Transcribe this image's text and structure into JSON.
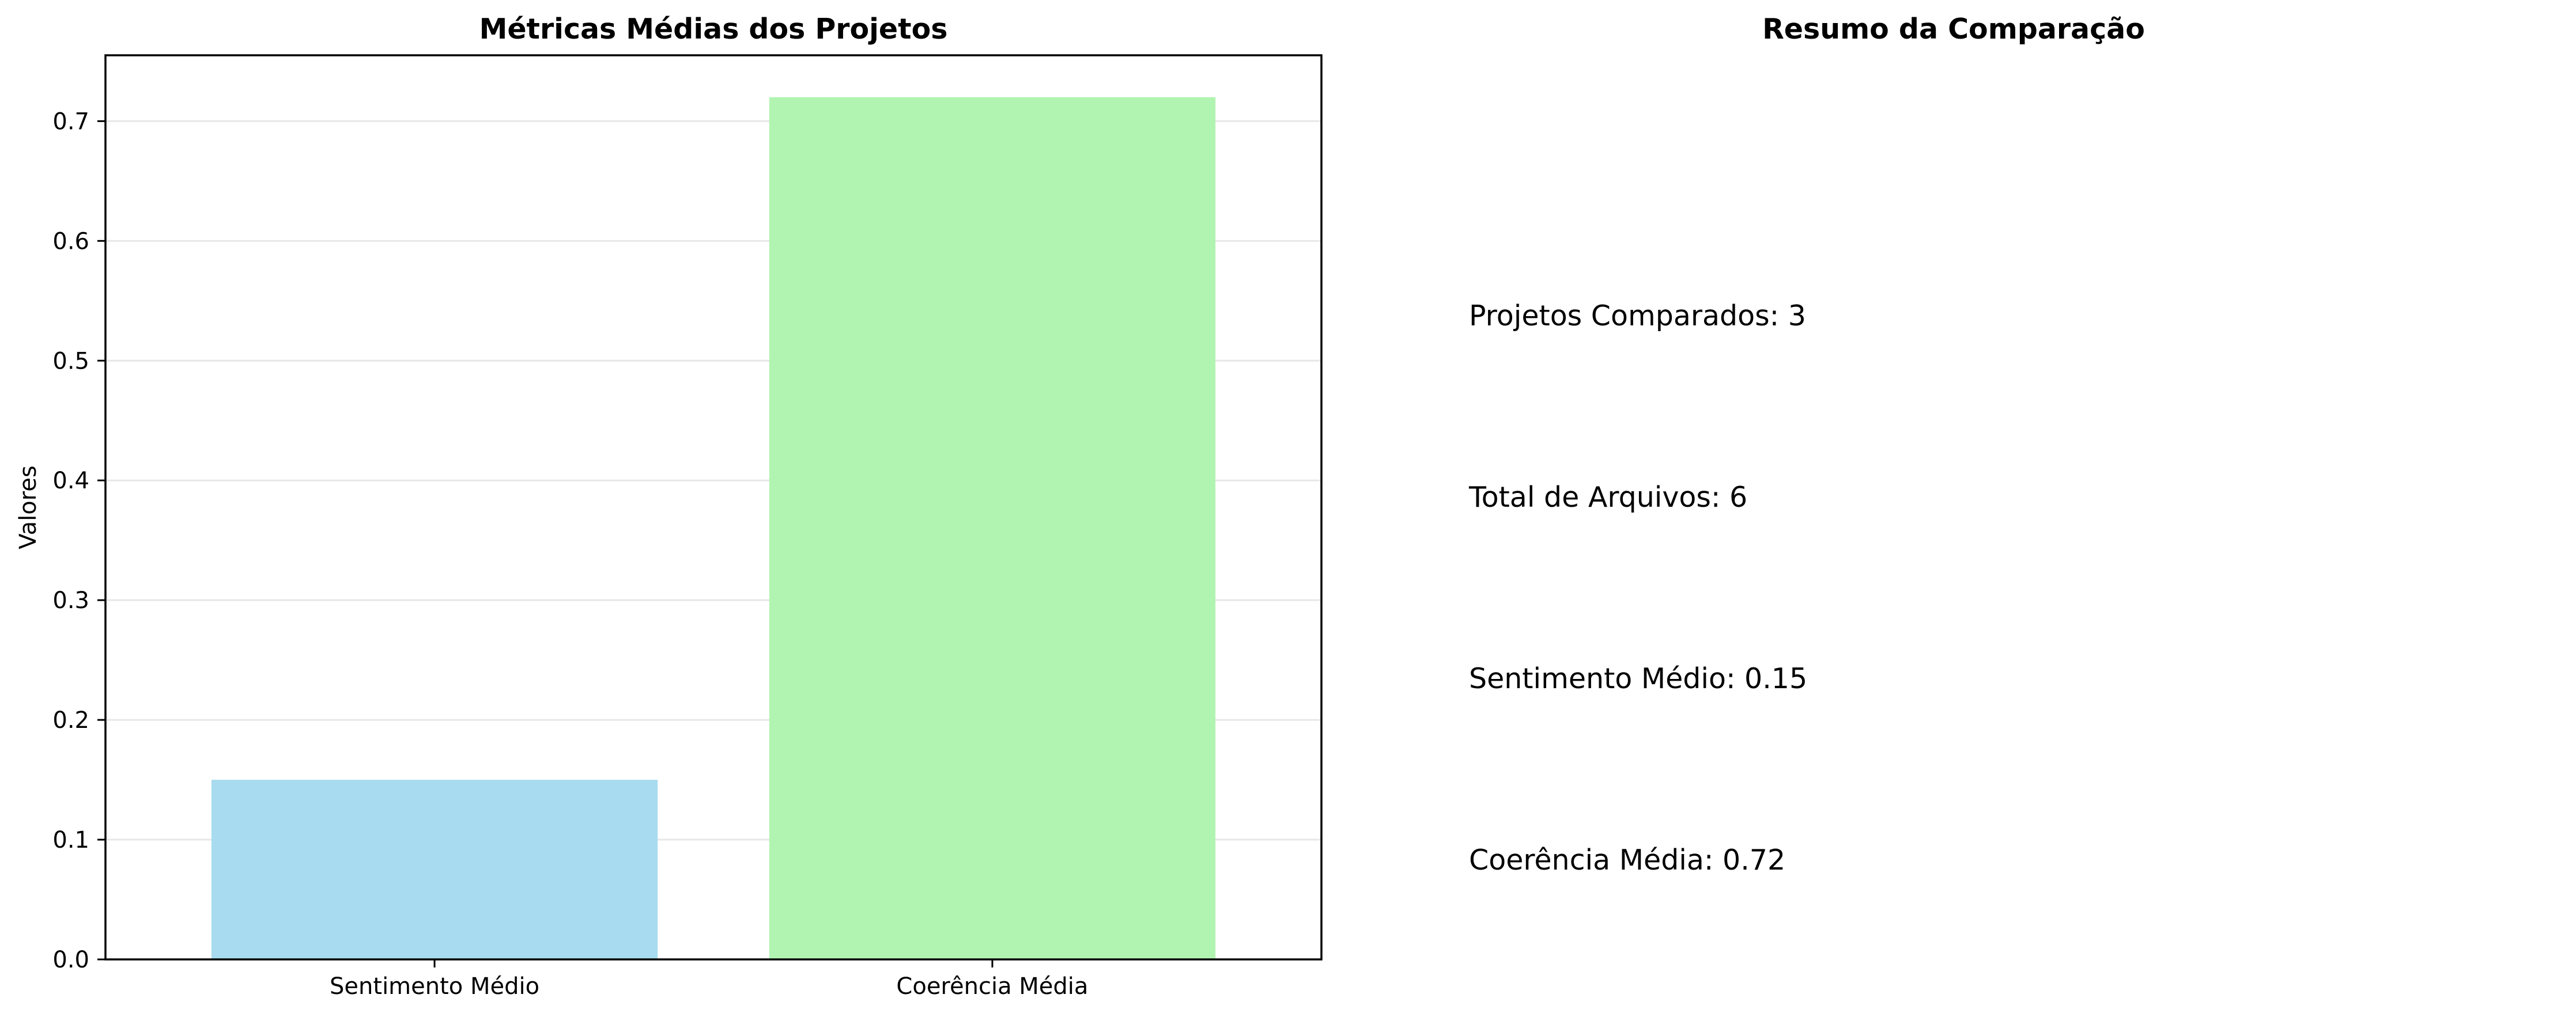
{
  "chart_data": {
    "type": "bar",
    "title": "Métricas Médias dos Projetos",
    "xlabel": "",
    "ylabel": "Valores",
    "categories": [
      "Sentimento Médio",
      "Coerência Média"
    ],
    "values": [
      0.15,
      0.72
    ],
    "colors": [
      "#a8dbef",
      "#b1f4b1"
    ],
    "ylim": [
      0,
      0.755
    ],
    "yticks": [
      0.0,
      0.1,
      0.2,
      0.3,
      0.4,
      0.5,
      0.6,
      0.7
    ],
    "ytick_labels": [
      "0.0",
      "0.1",
      "0.2",
      "0.3",
      "0.4",
      "0.5",
      "0.6",
      "0.7"
    ],
    "grid": "y",
    "legend": "none"
  },
  "summary": {
    "title": "Resumo da Comparação",
    "lines": [
      "Projetos Comparados: 3",
      "Total de Arquivos: 6",
      "Sentimento Médio: 0.15",
      "Coerência Média: 0.72"
    ]
  }
}
